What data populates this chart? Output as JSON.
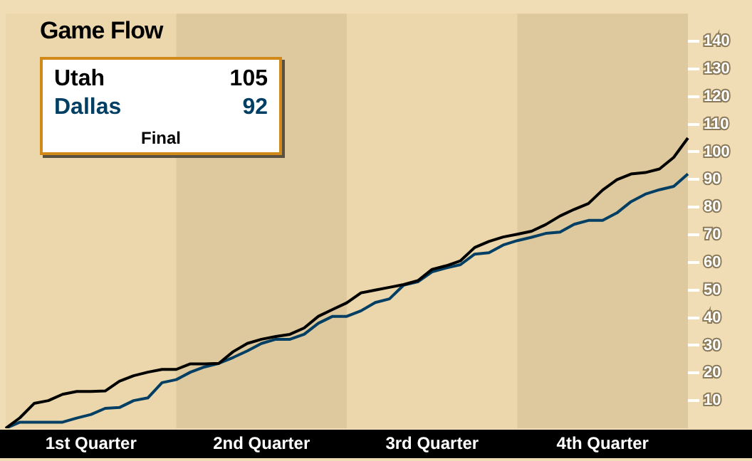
{
  "chart_data": {
    "type": "line",
    "title": "Game Flow",
    "categories": [
      null,
      null,
      null,
      null,
      null,
      null,
      "1st Quarter",
      null,
      null,
      null,
      null,
      null,
      null,
      null,
      null,
      null,
      null,
      null,
      "2nd Quarter",
      null,
      null,
      null,
      null,
      null,
      null,
      null,
      null,
      null,
      null,
      null,
      "3rd Quarter",
      null,
      null,
      null,
      null,
      null,
      null,
      null,
      null,
      null,
      null,
      null,
      "4th Quarter",
      null,
      null,
      null,
      null,
      null,
      null
    ],
    "series": [
      {
        "name": "Utah",
        "color": "#000000",
        "values": [
          0,
          3.8,
          9,
          10,
          12.3,
          13.3,
          13.3,
          13.5,
          17,
          19,
          20.3,
          21.3,
          21.3,
          23.3,
          23.3,
          23.5,
          27.7,
          30.7,
          32.2,
          33.2,
          34,
          36.3,
          40.5,
          43,
          45.4,
          49,
          50,
          51,
          52,
          53.4,
          57.5,
          58.8,
          60.6,
          65.4,
          67.6,
          69.2,
          70.2,
          71.3,
          73.7,
          76.8,
          79.2,
          81.3,
          86.2,
          89.9,
          92,
          92.5,
          93.8,
          98,
          105
        ]
      },
      {
        "name": "Dallas",
        "color": "#003f63",
        "type": "line",
        "values": [
          0,
          2.2,
          2.2,
          2.2,
          2.2,
          3.7,
          5,
          7.2,
          7.5,
          10,
          11,
          16.5,
          17.6,
          20.3,
          22.2,
          23.5,
          25.6,
          28,
          30.7,
          32.2,
          32.2,
          34,
          38,
          40.5,
          40.5,
          42.5,
          45.5,
          46.8,
          51.8,
          53,
          56.6,
          58,
          59.2,
          63,
          63.5,
          66.3,
          67.9,
          69.1,
          70.5,
          71,
          73.8,
          75.2,
          75.2,
          77.9,
          82,
          84.7,
          86.3,
          87.5,
          92
        ]
      }
    ],
    "annotations": [
      "105",
      "92",
      "Final"
    ],
    "ylim": [
      0,
      150
    ],
    "yticks": [
      10,
      20,
      30,
      40,
      50,
      60,
      70,
      80,
      90,
      100,
      110,
      120,
      130,
      140
    ],
    "legend": "top left",
    "grid": false,
    "marker": "none",
    "line_style": "solid"
  }
}
